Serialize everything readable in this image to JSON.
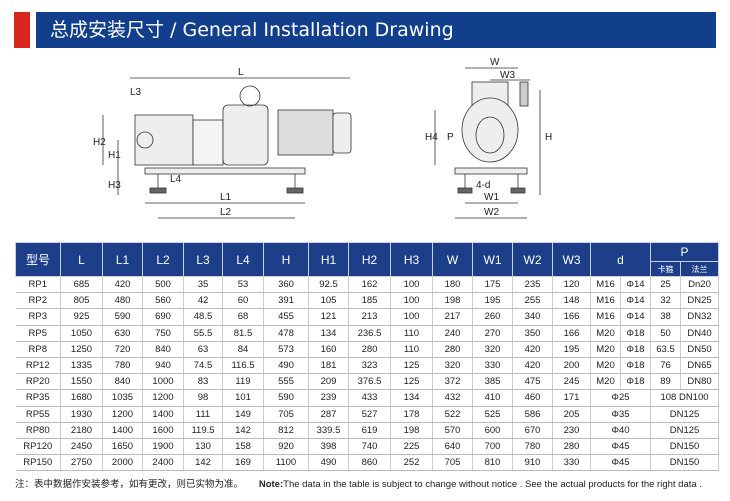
{
  "header": {
    "title": "总成安装尺寸 /  General Installation Drawing",
    "accent": "#d7261e",
    "bar_color": "#123f8c"
  },
  "drawing": {
    "side_labels": [
      "L",
      "L3",
      "H2",
      "H1",
      "H3",
      "L4",
      "L1",
      "L2"
    ],
    "front_labels": [
      "W",
      "W3",
      "H4",
      "P",
      "H",
      "4-d",
      "W1",
      "W2"
    ]
  },
  "table": {
    "headers": [
      "型号",
      "L",
      "L1",
      "L2",
      "L3",
      "L4",
      "H",
      "H1",
      "H2",
      "H3",
      "W",
      "W1",
      "W2",
      "W3",
      "d",
      "P"
    ],
    "p_sub": [
      "卡箍",
      "法兰"
    ],
    "rows": [
      [
        "RP1",
        "685",
        "420",
        "500",
        "35",
        "53",
        "360",
        "92.5",
        "162",
        "100",
        "180",
        "175",
        "235",
        "120",
        "M16",
        "Φ14",
        "25",
        "Dn20"
      ],
      [
        "RP2",
        "805",
        "480",
        "560",
        "42",
        "60",
        "391",
        "105",
        "185",
        "100",
        "198",
        "195",
        "255",
        "148",
        "M16",
        "Φ14",
        "32",
        "DN25"
      ],
      [
        "RP3",
        "925",
        "590",
        "690",
        "48.5",
        "68",
        "455",
        "121",
        "213",
        "100",
        "217",
        "260",
        "340",
        "166",
        "M16",
        "Φ14",
        "38",
        "DN32"
      ],
      [
        "RP5",
        "1050",
        "630",
        "750",
        "55.5",
        "81.5",
        "478",
        "134",
        "236.5",
        "110",
        "240",
        "270",
        "350",
        "166",
        "M20",
        "Φ18",
        "50",
        "DN40"
      ],
      [
        "RP8",
        "1250",
        "720",
        "840",
        "63",
        "84",
        "573",
        "160",
        "280",
        "110",
        "280",
        "320",
        "420",
        "195",
        "M20",
        "Φ18",
        "63.5",
        "DN50"
      ],
      [
        "RP12",
        "1335",
        "780",
        "940",
        "74.5",
        "116.5",
        "490",
        "181",
        "323",
        "125",
        "320",
        "330",
        "420",
        "200",
        "M20",
        "Φ18",
        "76",
        "DN65"
      ],
      [
        "RP20",
        "1550",
        "840",
        "1000",
        "83",
        "119",
        "555",
        "209",
        "376.5",
        "125",
        "372",
        "385",
        "475",
        "245",
        "M20",
        "Φ18",
        "89",
        "DN80"
      ],
      [
        "RP35",
        "1680",
        "1035",
        "1200",
        "98",
        "101",
        "590",
        "239",
        "433",
        "134",
        "432",
        "410",
        "460",
        "171",
        "Φ25",
        "108 DN100"
      ],
      [
        "RP55",
        "1930",
        "1200",
        "1400",
        "111",
        "149",
        "705",
        "287",
        "527",
        "178",
        "522",
        "525",
        "586",
        "205",
        "Φ35",
        "DN125"
      ],
      [
        "RP80",
        "2180",
        "1400",
        "1600",
        "119.5",
        "142",
        "812",
        "339.5",
        "619",
        "198",
        "570",
        "600",
        "670",
        "230",
        "Φ40",
        "DN125"
      ],
      [
        "RP120",
        "2450",
        "1650",
        "1900",
        "130",
        "158",
        "920",
        "398",
        "740",
        "225",
        "640",
        "700",
        "780",
        "280",
        "Φ45",
        "DN150"
      ],
      [
        "RP150",
        "2750",
        "2000",
        "2400",
        "142",
        "169",
        "1100",
        "490",
        "860",
        "252",
        "705",
        "810",
        "910",
        "330",
        "Φ45",
        "DN150"
      ]
    ]
  },
  "note": {
    "cn": "注：表中数据作安装参考，如有更改，则已实物为准。",
    "en_bold": "Note:",
    "en": "The data in the table is subject to change without notice . See the actual products for the right data ."
  }
}
